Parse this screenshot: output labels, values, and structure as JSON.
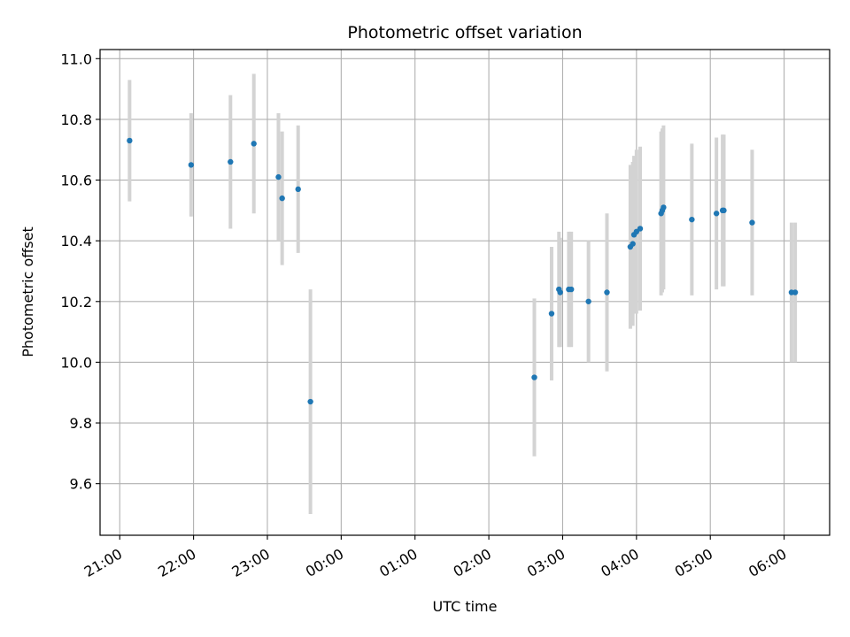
{
  "chart_data": {
    "type": "scatter",
    "title": "Photometric offset variation",
    "xlabel": "UTC time",
    "ylabel": "Photometric offset",
    "x_start": "21:00",
    "x_tick_labels": [
      "21:00",
      "22:00",
      "23:00",
      "00:00",
      "01:00",
      "02:00",
      "03:00",
      "04:00",
      "05:00",
      "06:00"
    ],
    "xlim": [
      "20:44",
      "06:37"
    ],
    "ylim": [
      9.43,
      11.03
    ],
    "y_ticks": [
      9.6,
      9.8,
      10.0,
      10.2,
      10.4,
      10.6,
      10.8,
      11.0
    ],
    "y_tick_labels": [
      "9.6",
      "9.8",
      "10.0",
      "10.2",
      "10.4",
      "10.6",
      "10.8",
      "11.0"
    ],
    "grid": true,
    "colors": {
      "point": "#1f77b4",
      "errorbar": "#d3d3d3",
      "grid": "#b0b0b0"
    },
    "points": [
      {
        "x": "21:08",
        "y": 10.73,
        "err": 0.2
      },
      {
        "x": "21:58",
        "y": 10.65,
        "err": 0.17
      },
      {
        "x": "22:30",
        "y": 10.66,
        "err": 0.22
      },
      {
        "x": "22:49",
        "y": 10.72,
        "err": 0.23
      },
      {
        "x": "23:09",
        "y": 10.61,
        "err": 0.21
      },
      {
        "x": "23:12",
        "y": 10.54,
        "err": 0.22
      },
      {
        "x": "23:25",
        "y": 10.57,
        "err": 0.21
      },
      {
        "x": "23:35",
        "y": 9.87,
        "err": 0.37
      },
      {
        "x": "02:37",
        "y": 9.95,
        "err": 0.26
      },
      {
        "x": "02:51",
        "y": 10.16,
        "err": 0.22
      },
      {
        "x": "02:57",
        "y": 10.24,
        "err": 0.19
      },
      {
        "x": "02:58",
        "y": 10.23,
        "err": 0.18
      },
      {
        "x": "03:05",
        "y": 10.24,
        "err": 0.19
      },
      {
        "x": "03:07",
        "y": 10.24,
        "err": 0.19
      },
      {
        "x": "03:21",
        "y": 10.2,
        "err": 0.2
      },
      {
        "x": "03:36",
        "y": 10.23,
        "err": 0.26
      },
      {
        "x": "03:55",
        "y": 10.38,
        "err": 0.27
      },
      {
        "x": "03:57",
        "y": 10.39,
        "err": 0.27
      },
      {
        "x": "03:58",
        "y": 10.42,
        "err": 0.26
      },
      {
        "x": "04:00",
        "y": 10.43,
        "err": 0.27
      },
      {
        "x": "04:03",
        "y": 10.44,
        "err": 0.27
      },
      {
        "x": "04:20",
        "y": 10.49,
        "err": 0.27
      },
      {
        "x": "04:21",
        "y": 10.5,
        "err": 0.27
      },
      {
        "x": "04:22",
        "y": 10.51,
        "err": 0.27
      },
      {
        "x": "04:45",
        "y": 10.47,
        "err": 0.25
      },
      {
        "x": "05:05",
        "y": 10.49,
        "err": 0.25
      },
      {
        "x": "05:10",
        "y": 10.5,
        "err": 0.25
      },
      {
        "x": "05:11",
        "y": 10.5,
        "err": 0.25
      },
      {
        "x": "05:34",
        "y": 10.46,
        "err": 0.24
      },
      {
        "x": "06:06",
        "y": 10.23,
        "err": 0.23
      },
      {
        "x": "06:09",
        "y": 10.23,
        "err": 0.23
      }
    ]
  }
}
